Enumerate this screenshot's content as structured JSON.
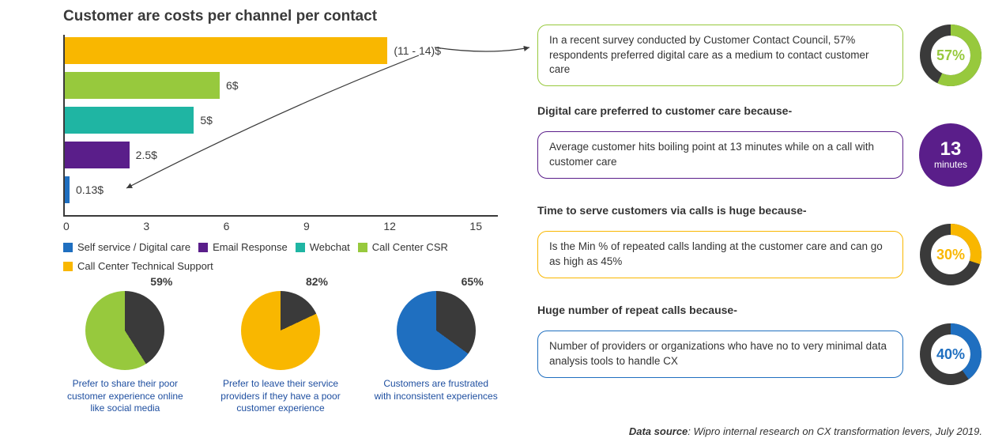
{
  "title": "Customer are costs per channel per contact",
  "colors": {
    "tech_support": "#f9b700",
    "csr": "#97c93d",
    "webchat": "#1fb5a3",
    "email": "#5a1e8a",
    "selfservice": "#1f6fc0",
    "dark": "#3a3a3a"
  },
  "barChart": {
    "xmax": 15,
    "xticks": [
      "0",
      "3",
      "6",
      "9",
      "12",
      "15"
    ],
    "bars": [
      {
        "key": "tech_support",
        "value": 12.5,
        "label": "(11 - 14)$",
        "color": "#f9b700"
      },
      {
        "key": "csr",
        "value": 6,
        "label": "6$",
        "color": "#97c93d"
      },
      {
        "key": "webchat",
        "value": 5,
        "label": "5$",
        "color": "#1fb5a3"
      },
      {
        "key": "email",
        "value": 2.5,
        "label": "2.5$",
        "color": "#5a1e8a"
      },
      {
        "key": "selfservice",
        "value": 0.13,
        "label": "0.13$",
        "color": "#1f6fc0"
      }
    ],
    "legend": [
      {
        "label": "Self service / Digital care",
        "color": "#1f6fc0"
      },
      {
        "label": "Email Response",
        "color": "#5a1e8a"
      },
      {
        "label": "Webchat",
        "color": "#1fb5a3"
      },
      {
        "label": "Call Center CSR",
        "color": "#97c93d"
      },
      {
        "label": "Call Center Technical Support",
        "color": "#f9b700"
      }
    ]
  },
  "pies": [
    {
      "pct": 59,
      "pct_label": "59%",
      "color": "#97c93d",
      "caption_color": "#1f4fa0",
      "caption": "Prefer to share their poor customer experience online like social media"
    },
    {
      "pct": 82,
      "pct_label": "82%",
      "color": "#f9b700",
      "caption_color": "#1f4fa0",
      "caption": "Prefer to leave their service providers if they have a poor customer experience"
    },
    {
      "pct": 65,
      "pct_label": "65%",
      "color": "#1f6fc0",
      "caption_color": "#1f4fa0",
      "caption": "Customers are frustrated with inconsistent experiences"
    }
  ],
  "cards": [
    {
      "kind": "donut",
      "border_color": "#97c93d",
      "text": "In a recent survey conducted by Customer Contact Council, 57% respondents preferred digital care as a medium to contact customer care",
      "value_label": "57%",
      "pct": 57,
      "ring_color": "#97c93d",
      "value_color": "#97c93d"
    },
    {
      "kind": "solid",
      "heading": "Digital care preferred to customer care because-",
      "border_color": "#5a1e8a",
      "text": "Average customer hits boiling point at 13 minutes while on a call with customer care",
      "big": "13",
      "small": "minutes",
      "fill_color": "#5a1e8a"
    },
    {
      "kind": "donut",
      "heading": "Time to serve customers via calls is huge because-",
      "border_color": "#f9b700",
      "text": "Is the Min % of repeated calls landing at the customer care and can go as high as 45%",
      "value_label": "30%",
      "pct": 30,
      "ring_color": "#f9b700",
      "value_color": "#f9b700"
    },
    {
      "kind": "donut",
      "heading": "Huge number of repeat calls because-",
      "border_color": "#1f6fc0",
      "text": "Number of providers or organizations who have no to very minimal data analysis tools to handle CX",
      "value_label": "40%",
      "pct": 40,
      "ring_color": "#1f6fc0",
      "value_color": "#1f6fc0"
    }
  ],
  "footer_label": "Data source",
  "footer_text": ": Wipro internal research on CX transformation levers, July 2019."
}
